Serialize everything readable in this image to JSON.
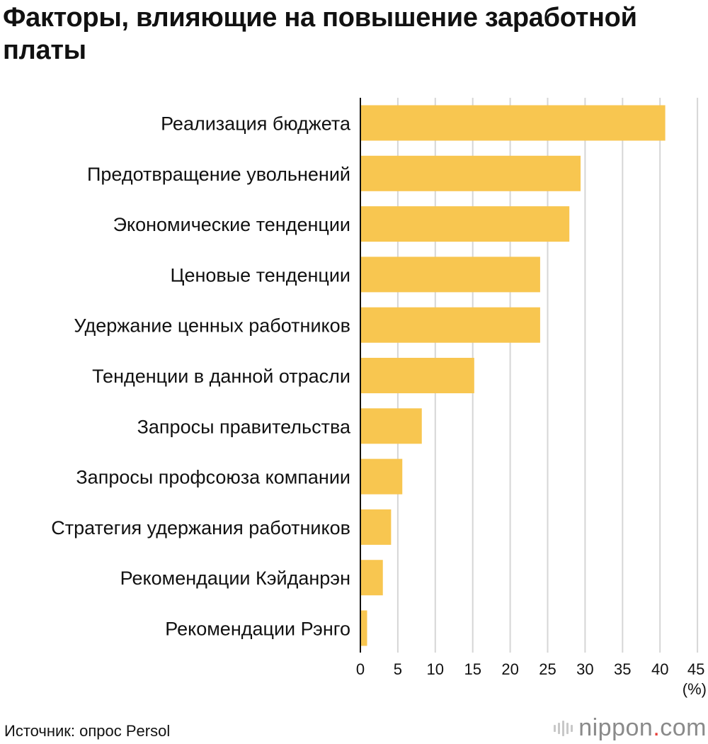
{
  "title": "Факторы, влияющие на повышение заработной платы",
  "chart_data": {
    "type": "bar",
    "orientation": "horizontal",
    "title": "Факторы, влияющие на повышение заработной платы",
    "categories": [
      "Реализация бюджета",
      "Предотвращение увольнений",
      "Экономические тенденции",
      "Ценовые тенденции",
      "Удержание ценных работников",
      "Тенденции в данной отрасли",
      "Запросы правительства",
      "Запросы профсоюза компании",
      "Стратегия удержания работников",
      "Рекомендации Кэйданрэн",
      "Рекомендации Рэнго"
    ],
    "values": [
      40.7,
      29.4,
      27.9,
      24.0,
      24.0,
      15.2,
      8.2,
      5.6,
      4.1,
      3.0,
      0.9
    ],
    "xlim": [
      0,
      45
    ],
    "xticks": [
      "0",
      "5",
      "10",
      "15",
      "20",
      "25",
      "30",
      "35",
      "40",
      "45"
    ],
    "xtick_values": [
      0,
      5,
      10,
      15,
      20,
      25,
      30,
      35,
      40,
      45
    ],
    "xlabel": "(%)",
    "ylabel": "",
    "grid": true,
    "bar_color": "#f8c650",
    "grid_color": "#d6d6d6"
  },
  "source": "Источник: опрос Persol",
  "logo": {
    "name": "nippon",
    "dot": ".",
    "suffix": "com",
    "dot_color": "#e8403a"
  }
}
